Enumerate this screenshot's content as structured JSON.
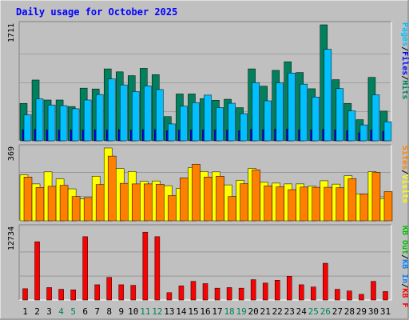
{
  "title": "Daily usage for October 2025",
  "chart_data": [
    {
      "type": "bar",
      "panel": "hits-files-pages",
      "ymax_label": "1711",
      "ylim": [
        0,
        1711
      ],
      "categories": [
        "1",
        "2",
        "3",
        "4",
        "5",
        "6",
        "7",
        "8",
        "9",
        "10",
        "11",
        "12",
        "13",
        "14",
        "15",
        "16",
        "17",
        "18",
        "19",
        "20",
        "21",
        "22",
        "23",
        "24",
        "25",
        "26",
        "27",
        "28",
        "29",
        "30",
        "31"
      ],
      "weekend_days": [
        "4",
        "5",
        "11",
        "12",
        "18",
        "19",
        "25",
        "26"
      ],
      "legend": [
        {
          "text": "Hits",
          "color": "#00805c"
        },
        {
          "text": "/",
          "color": "#000000"
        },
        {
          "text": "Files",
          "color": "#0000ff"
        },
        {
          "text": "/",
          "color": "#000000"
        },
        {
          "text": "Pages",
          "color": "#00c0ff"
        }
      ],
      "series": [
        {
          "name": "Hits",
          "color": "#00805c",
          "values": [
            552,
            897,
            602,
            602,
            506,
            777,
            765,
            1061,
            1017,
            961,
            1069,
            976,
            357,
            691,
            691,
            622,
            598,
            613,
            489,
            1061,
            806,
            1039,
            1166,
            1008,
            768,
            1711,
            902,
            552,
            312,
            936,
            438
          ]
        },
        {
          "name": "Files",
          "color": "#0000ff",
          "values": [
            160,
            170,
            160,
            160,
            160,
            160,
            160,
            160,
            165,
            160,
            165,
            165,
            150,
            160,
            160,
            160,
            160,
            160,
            150,
            170,
            160,
            170,
            170,
            160,
            160,
            170,
            160,
            150,
            120,
            160,
            140
          ]
        },
        {
          "name": "Pages",
          "color": "#00c0ff",
          "values": [
            383,
            619,
            529,
            519,
            473,
            602,
            683,
            913,
            825,
            727,
            810,
            756,
            249,
            512,
            564,
            674,
            491,
            554,
            401,
            858,
            590,
            855,
            1000,
            836,
            646,
            1350,
            770,
            441,
            235,
            678,
            281
          ]
        }
      ]
    },
    {
      "type": "bar",
      "panel": "visits-sites",
      "ymax_label": "369",
      "ylim": [
        0,
        369
      ],
      "categories": [
        "1",
        "2",
        "3",
        "4",
        "5",
        "6",
        "7",
        "8",
        "9",
        "10",
        "11",
        "12",
        "13",
        "14",
        "15",
        "16",
        "17",
        "18",
        "19",
        "20",
        "21",
        "22",
        "23",
        "24",
        "25",
        "26",
        "27",
        "28",
        "29",
        "30",
        "31"
      ],
      "legend": [
        {
          "text": "Visits",
          "color": "#ffff00"
        },
        {
          "text": "/",
          "color": "#000000"
        },
        {
          "text": "Sites",
          "color": "#ff8000"
        }
      ],
      "series": [
        {
          "name": "Visits",
          "color": "#ffff00",
          "values": [
            233,
            187,
            248,
            212,
            162,
            111,
            226,
            369,
            265,
            250,
            200,
            202,
            178,
            164,
            270,
            250,
            248,
            182,
            205,
            265,
            195,
            191,
            187,
            187,
            175,
            203,
            186,
            228,
            136,
            249,
            113
          ]
        },
        {
          "name": "Sites",
          "color": "#ff8000",
          "values": [
            222,
            169,
            175,
            180,
            123,
            118,
            184,
            328,
            190,
            187,
            187,
            185,
            128,
            218,
            287,
            222,
            226,
            123,
            188,
            258,
            177,
            172,
            158,
            171,
            170,
            170,
            168,
            214,
            136,
            245,
            148
          ]
        }
      ]
    },
    {
      "type": "bar",
      "panel": "kbytes",
      "ymax_label": "12734",
      "ylim": [
        0,
        12734
      ],
      "categories": [
        "1",
        "2",
        "3",
        "4",
        "5",
        "6",
        "7",
        "8",
        "9",
        "10",
        "11",
        "12",
        "13",
        "14",
        "15",
        "16",
        "17",
        "18",
        "19",
        "20",
        "21",
        "22",
        "23",
        "24",
        "25",
        "26",
        "27",
        "28",
        "29",
        "30",
        "31"
      ],
      "legend": [
        {
          "text": "KB F",
          "color": "#ff0000"
        },
        {
          "text": "/",
          "color": "#000000"
        },
        {
          "text": "KB In",
          "color": "#0080ff"
        },
        {
          "text": "/",
          "color": "#000000"
        },
        {
          "text": "KB Out",
          "color": "#00c000"
        }
      ],
      "series": [
        {
          "name": "KB F",
          "color": "#ff0000",
          "values": [
            2000,
            10300,
            2200,
            1900,
            1800,
            11200,
            2700,
            4000,
            2700,
            2600,
            12000,
            11200,
            1300,
            2500,
            3300,
            2900,
            2100,
            2200,
            2100,
            3600,
            3000,
            3500,
            4200,
            2700,
            2300,
            6500,
            1900,
            1600,
            1000,
            3300,
            1500
          ]
        }
      ]
    }
  ]
}
